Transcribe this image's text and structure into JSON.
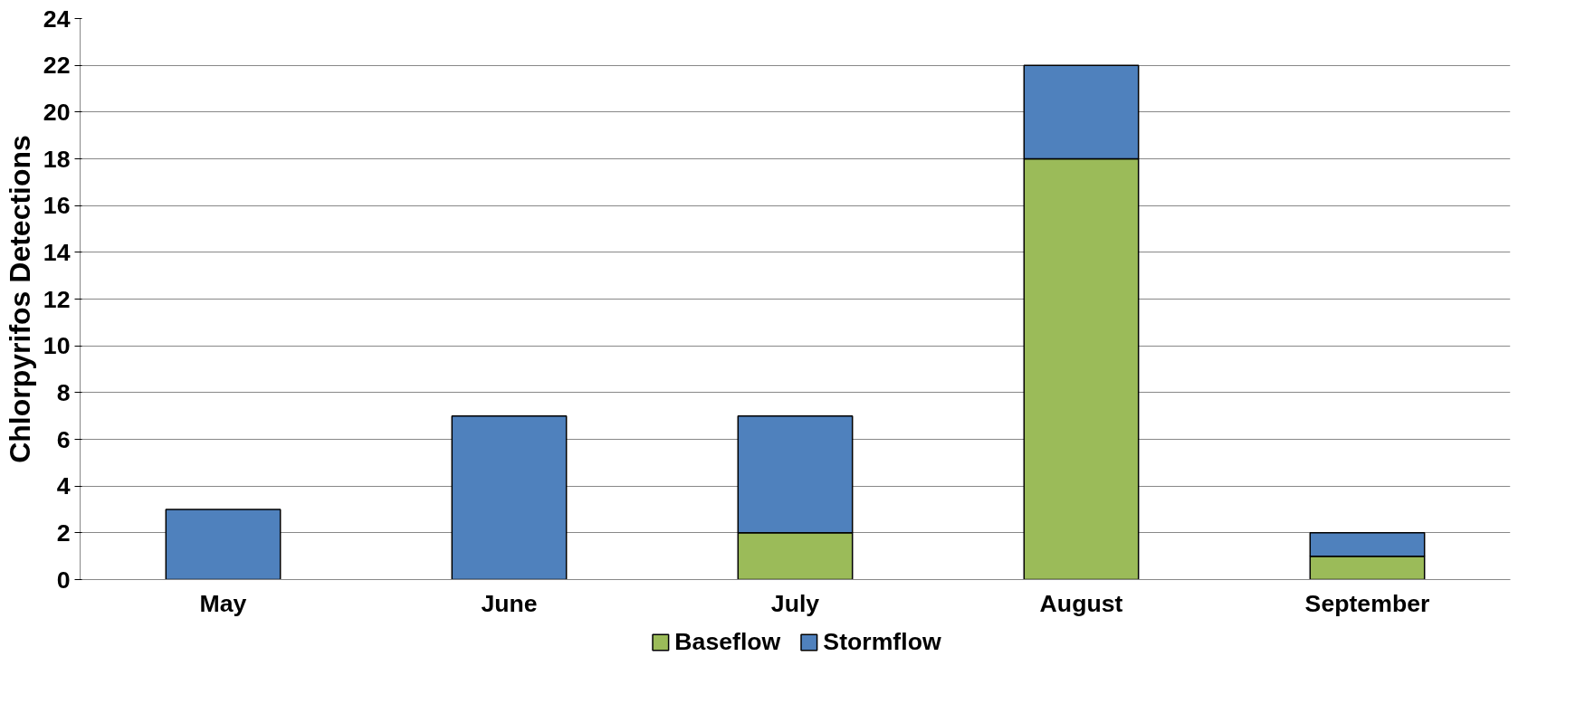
{
  "chart_data": {
    "type": "bar",
    "ylabel": "Chlorpyrifos Detections",
    "categories": [
      "May",
      "June",
      "July",
      "August",
      "September"
    ],
    "series": [
      {
        "name": "Baseflow",
        "color": "#9bbb59",
        "values": [
          0,
          0,
          2,
          18,
          1
        ]
      },
      {
        "name": "Stormflow",
        "color": "#4f81bd",
        "values": [
          3,
          7,
          5,
          4,
          1
        ]
      }
    ],
    "stacked": true,
    "ylim": [
      0,
      24
    ],
    "yticks": [
      0,
      2,
      4,
      6,
      8,
      10,
      12,
      14,
      16,
      18,
      20,
      22,
      24
    ],
    "grid": "y",
    "legend": "bottom"
  }
}
